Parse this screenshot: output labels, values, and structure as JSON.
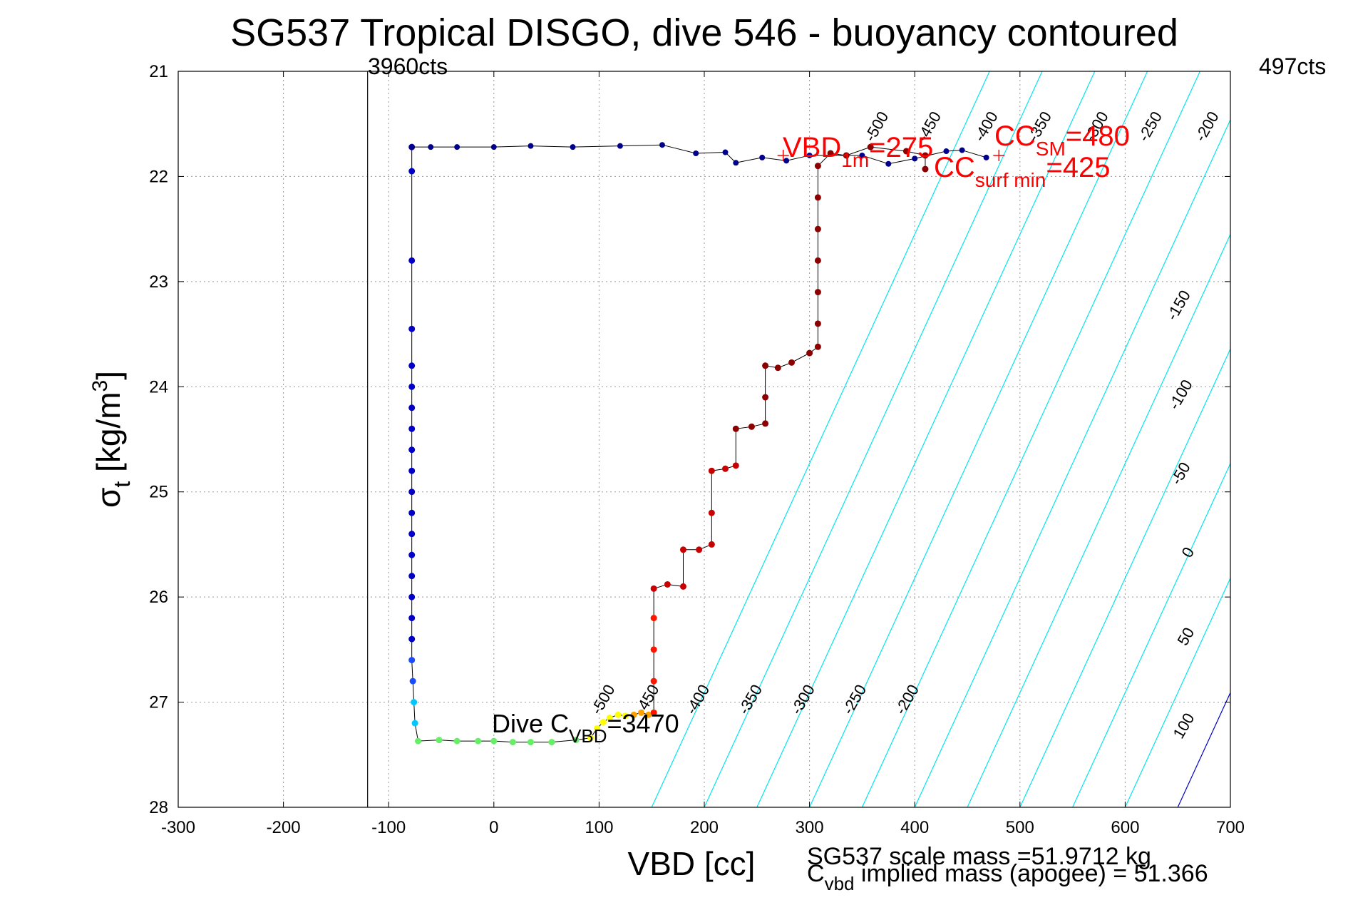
{
  "chart_data": {
    "type": "scatter",
    "title": "SG537 Tropical DISGO, dive 546 - buoyancy contoured",
    "xlabel": "VBD [cc]",
    "ylabel_main": "σ",
    "ylabel_sub": "t",
    "ylabel_unit": " [kg/m",
    "ylabel_sup": "3",
    "ylabel_close": "]",
    "xlim": [
      -300,
      700
    ],
    "ylim": [
      21,
      28
    ],
    "y_reversed": true,
    "grid": true,
    "x_ticks": [
      "-300",
      "-200",
      "-100",
      "0",
      "100",
      "200",
      "300",
      "400",
      "500",
      "600",
      "700"
    ],
    "y_ticks": [
      "21",
      "22",
      "23",
      "24",
      "25",
      "26",
      "27",
      "28"
    ],
    "top_labels": {
      "left": "3960cts",
      "right": "497cts"
    },
    "vline_x": -120,
    "buoyancy_contours": {
      "levels": [
        -500,
        -450,
        -400,
        -350,
        -300,
        -250,
        -200,
        -150,
        -100,
        -50,
        0,
        50,
        100
      ],
      "labels": [
        "-500",
        "-450",
        "-400",
        "-350",
        "-300",
        "-250",
        "-200",
        "-150",
        "-100",
        "-50",
        "0",
        "50",
        "100"
      ],
      "colors": {
        "negative": "#00e5ee",
        "zero": "#0000c8",
        "positive": "#e600e6"
      },
      "label_positions": {
        "upper": [
          {
            "text": "-500",
            "x": 368,
            "y": 21.55
          },
          {
            "text": "-450",
            "x": 418,
            "y": 21.55
          },
          {
            "text": "-400",
            "x": 472,
            "y": 21.55
          },
          {
            "text": "-350",
            "x": 523,
            "y": 21.55
          },
          {
            "text": "-300",
            "x": 577,
            "y": 21.55
          },
          {
            "text": "-250",
            "x": 628,
            "y": 21.55
          },
          {
            "text": "-200",
            "x": 682,
            "y": 21.55
          },
          {
            "text": "-150",
            "x": 655,
            "y": 23.25
          },
          {
            "text": "-100",
            "x": 657,
            "y": 24.1
          },
          {
            "text": "-50",
            "x": 657,
            "y": 24.85
          },
          {
            "text": "0",
            "x": 664,
            "y": 25.6
          },
          {
            "text": "50",
            "x": 662,
            "y": 26.4
          },
          {
            "text": "100",
            "x": 660,
            "y": 27.25
          }
        ],
        "lower": [
          {
            "text": "-500",
            "x": 108,
            "y": 27.0
          },
          {
            "text": "-450",
            "x": 150,
            "y": 27.0
          },
          {
            "text": "-400",
            "x": 198,
            "y": 27.0
          },
          {
            "text": "-350",
            "x": 248,
            "y": 27.0
          },
          {
            "text": "-300",
            "x": 298,
            "y": 27.0
          },
          {
            "text": "-250",
            "x": 347,
            "y": 27.0
          },
          {
            "text": "-200",
            "x": 397,
            "y": 27.0
          }
        ]
      }
    },
    "annotations": {
      "vbd_1m": {
        "main": "VBD",
        "sub": "1m",
        "value": "=275",
        "x": 275,
        "y": 21.8
      },
      "cc_sm": {
        "main": "CC",
        "sub": "SM",
        "value": "=480",
        "x": 480,
        "y": 21.8
      },
      "cc_surf_min": {
        "main": "CC",
        "sub": "surf min",
        "value": "=425",
        "y": 21.95
      },
      "dive_cvbd": {
        "main": "Dive C",
        "sub": "VBD",
        "value": "=3470",
        "x": 0,
        "y": 27.3
      }
    },
    "footer": {
      "scale_mass": "SG537 scale mass =51.9712 kg",
      "cvbd_main": "C",
      "cvbd_sub": "vbd",
      "cvbd_rest": " implied mass (apogee) = 51.366"
    },
    "series": [
      {
        "colors": [
          "#00008c",
          "#0000c8",
          "#1a4cff",
          "#00c8ff",
          "#66ee66",
          "#ffff00",
          "#ffa000",
          "#ff1400",
          "#c80000",
          "#8c0000"
        ],
        "descent_points": [
          [
            -78,
            21.72
          ],
          [
            -78,
            21.95
          ],
          [
            -78,
            22.8
          ],
          [
            -78,
            23.45
          ],
          [
            -78,
            23.8
          ],
          [
            -78,
            24.0
          ],
          [
            -78,
            24.2
          ],
          [
            -78,
            24.4
          ],
          [
            -78,
            24.6
          ],
          [
            -78,
            24.8
          ],
          [
            -78,
            25.0
          ],
          [
            -78,
            25.2
          ],
          [
            -78,
            25.4
          ],
          [
            -78,
            25.6
          ],
          [
            -78,
            25.8
          ],
          [
            -78,
            26.0
          ],
          [
            -78,
            26.2
          ],
          [
            -78,
            26.4
          ],
          [
            -78,
            26.6
          ],
          [
            -77,
            26.8
          ],
          [
            -76,
            27.0
          ],
          [
            -75,
            27.2
          ],
          [
            -72,
            27.37
          ],
          [
            -52,
            27.36
          ],
          [
            -35,
            27.37
          ],
          [
            -15,
            27.37
          ],
          [
            0,
            27.37
          ],
          [
            18,
            27.38
          ],
          [
            35,
            27.38
          ],
          [
            55,
            27.38
          ],
          [
            78,
            27.36
          ],
          [
            92,
            27.34
          ],
          [
            98,
            27.25
          ],
          [
            104,
            27.19
          ],
          [
            110,
            27.15
          ],
          [
            118,
            27.12
          ],
          [
            125,
            27.13
          ],
          [
            133,
            27.12
          ],
          [
            140,
            27.1
          ],
          [
            147,
            27.12
          ],
          [
            152,
            27.1
          ]
        ],
        "ascent_points": [
          [
            152,
            27.1
          ],
          [
            152,
            26.8
          ],
          [
            152,
            26.5
          ],
          [
            152,
            26.2
          ],
          [
            152,
            25.92
          ],
          [
            165,
            25.88
          ],
          [
            180,
            25.9
          ],
          [
            180,
            25.55
          ],
          [
            195,
            25.55
          ],
          [
            207,
            25.5
          ],
          [
            207,
            25.2
          ],
          [
            207,
            24.8
          ],
          [
            220,
            24.78
          ],
          [
            230,
            24.75
          ],
          [
            230,
            24.4
          ],
          [
            245,
            24.38
          ],
          [
            258,
            24.35
          ],
          [
            258,
            24.1
          ],
          [
            258,
            23.8
          ],
          [
            270,
            23.82
          ],
          [
            283,
            23.77
          ],
          [
            300,
            23.68
          ],
          [
            308,
            23.62
          ],
          [
            308,
            23.4
          ],
          [
            308,
            23.1
          ],
          [
            308,
            22.8
          ],
          [
            308,
            22.5
          ],
          [
            308,
            22.2
          ],
          [
            308,
            21.9
          ],
          [
            320,
            21.78
          ],
          [
            335,
            21.8
          ],
          [
            358,
            21.72
          ],
          [
            392,
            21.76
          ],
          [
            410,
            21.8
          ],
          [
            410,
            21.93
          ]
        ],
        "surface_points": [
          [
            -78,
            21.72
          ],
          [
            -60,
            21.72
          ],
          [
            -35,
            21.72
          ],
          [
            0,
            21.72
          ],
          [
            35,
            21.71
          ],
          [
            75,
            21.72
          ],
          [
            120,
            21.71
          ],
          [
            160,
            21.7
          ],
          [
            192,
            21.78
          ],
          [
            220,
            21.77
          ],
          [
            230,
            21.87
          ],
          [
            255,
            21.82
          ],
          [
            278,
            21.85
          ],
          [
            300,
            21.8
          ],
          [
            350,
            21.8
          ],
          [
            375,
            21.88
          ],
          [
            400,
            21.83
          ],
          [
            430,
            21.76
          ],
          [
            445,
            21.75
          ],
          [
            468,
            21.82
          ]
        ]
      }
    ]
  }
}
